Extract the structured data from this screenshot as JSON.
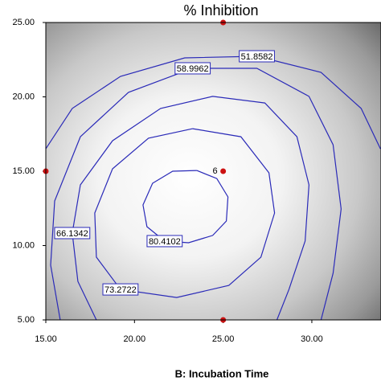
{
  "chart_data": {
    "type": "contour",
    "title": "% Inhibition",
    "x_label": "B: Incubation Time",
    "xlim": [
      15,
      33.9
    ],
    "ylim": [
      5,
      25
    ],
    "xticks": [
      {
        "value": 15,
        "label": "15.00"
      },
      {
        "value": 20,
        "label": "20.00"
      },
      {
        "value": 25,
        "label": "25.00"
      },
      {
        "value": 30,
        "label": "30.00"
      }
    ],
    "yticks": [
      {
        "value": 5,
        "label": "5.00"
      },
      {
        "value": 10,
        "label": "10.00"
      },
      {
        "value": 15,
        "label": "15.00"
      },
      {
        "value": 20,
        "label": "20.00"
      },
      {
        "value": 25,
        "label": "25.00"
      }
    ],
    "line_color": "#2a2ab8",
    "point_color": "#cc1111",
    "contours": [
      {
        "level": 51.8582,
        "x": [
          15.0,
          16.49,
          19.21,
          22.83,
          26.9,
          30.52,
          32.78,
          33.87
        ],
        "y": [
          16.51,
          19.22,
          21.38,
          22.62,
          22.73,
          21.65,
          19.22,
          16.51
        ]
      },
      {
        "level": 58.9962,
        "x": [
          15.81,
          15.27,
          15.5,
          16.95,
          19.66,
          23.28,
          26.9,
          29.84,
          31.2,
          31.65,
          31.2,
          30.52
        ],
        "y": [
          5.0,
          8.68,
          13.0,
          17.32,
          20.3,
          21.92,
          21.92,
          20.03,
          16.78,
          12.46,
          8.14,
          5.0
        ]
      },
      {
        "level": 66.1342,
        "x": [
          17.85,
          16.81,
          16.49,
          16.95,
          18.76,
          21.47,
          24.41,
          27.35,
          29.16,
          29.84,
          29.62,
          28.71,
          28.03
        ],
        "y": [
          5.0,
          7.59,
          10.84,
          14.08,
          17.05,
          19.22,
          20.03,
          19.59,
          17.32,
          14.08,
          10.3,
          7.05,
          5.0
        ]
      },
      {
        "level": 73.2722,
        "x": [
          23.28,
          26.0,
          27.58,
          27.9,
          27.13,
          25.32,
          22.38,
          19.21,
          17.85,
          17.76,
          18.76,
          20.79,
          23.28
        ],
        "y": [
          17.86,
          17.32,
          14.89,
          12.19,
          9.22,
          7.32,
          6.51,
          7.05,
          9.22,
          12.19,
          15.16,
          17.22,
          17.86
        ]
      },
      {
        "level": 80.4102,
        "x": [
          23.51,
          24.64,
          25.27,
          25.18,
          24.41,
          23.05,
          21.7,
          20.7,
          20.48,
          21.02,
          22.15,
          23.51
        ],
        "y": [
          15.05,
          14.51,
          13.27,
          11.65,
          10.68,
          10.19,
          10.3,
          11.27,
          12.73,
          14.19,
          15.0,
          15.05
        ]
      }
    ],
    "design_points": {
      "x": [
        25,
        15,
        25
      ],
      "y": [
        25,
        15,
        5
      ]
    },
    "center_point": {
      "x": 25,
      "y": 15,
      "count": 6
    }
  }
}
